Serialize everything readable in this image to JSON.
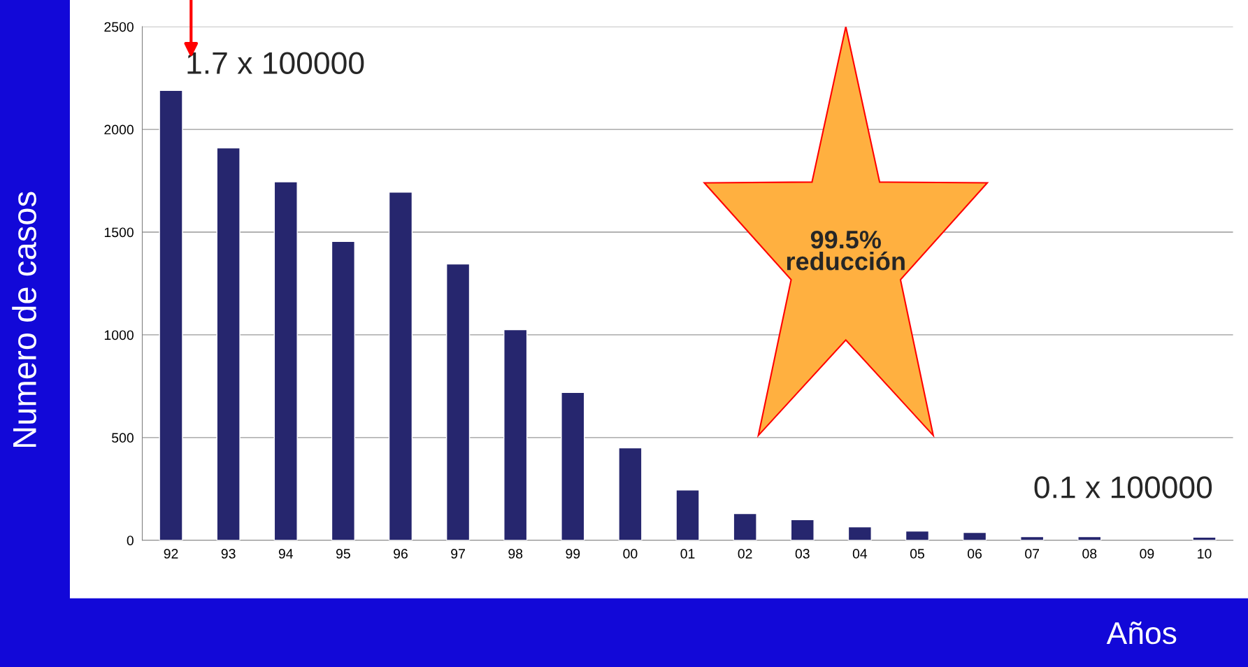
{
  "chart_data": {
    "type": "bar",
    "ylabel": "Numero de casos",
    "xlabel": "Años",
    "categories": [
      "92",
      "93",
      "94",
      "95",
      "96",
      "97",
      "98",
      "99",
      "00",
      "01",
      "02",
      "03",
      "04",
      "05",
      "06",
      "07",
      "08",
      "09",
      "10"
    ],
    "values": [
      2190,
      1910,
      1745,
      1455,
      1695,
      1345,
      1025,
      720,
      450,
      245,
      130,
      100,
      65,
      45,
      38,
      18,
      18,
      null,
      15
    ],
    "color": "#26266e",
    "ylim": [
      0,
      2500
    ],
    "yticks": [
      0,
      500,
      1000,
      1500,
      2000,
      2500
    ],
    "grid": "y",
    "legend": false,
    "annotations": [
      {
        "text": "1.7 x 100000",
        "x": "92",
        "y": 2190
      },
      "99.5%\nreducción",
      {
        "text": "0.1 x 100000",
        "x": "10",
        "y": 15
      }
    ]
  }
}
